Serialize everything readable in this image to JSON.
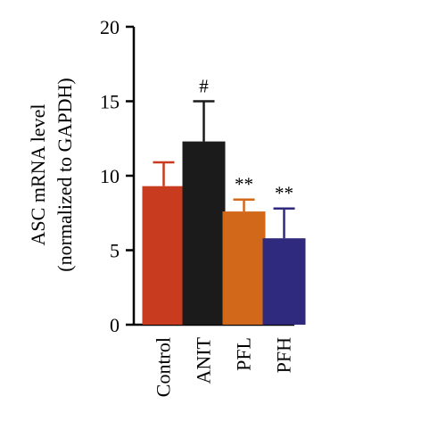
{
  "chart_data": {
    "type": "bar",
    "ylabel_lines": [
      "ASC mRNA level",
      "(normalized to GAPDH)"
    ],
    "ylim": [
      0,
      20
    ],
    "yticks": [
      0,
      5,
      10,
      15,
      20
    ],
    "grid": false,
    "categories": [
      "Control",
      "ANIT",
      "PFL",
      "PFH"
    ],
    "values": [
      9.3,
      12.3,
      7.6,
      5.8
    ],
    "errors": [
      1.6,
      2.7,
      0.8,
      2.0
    ],
    "colors": [
      "#c93b1e",
      "#1b1b1b",
      "#d2681a",
      "#2f2a7e"
    ],
    "annotations": [
      "",
      "#",
      "**",
      "**"
    ]
  }
}
